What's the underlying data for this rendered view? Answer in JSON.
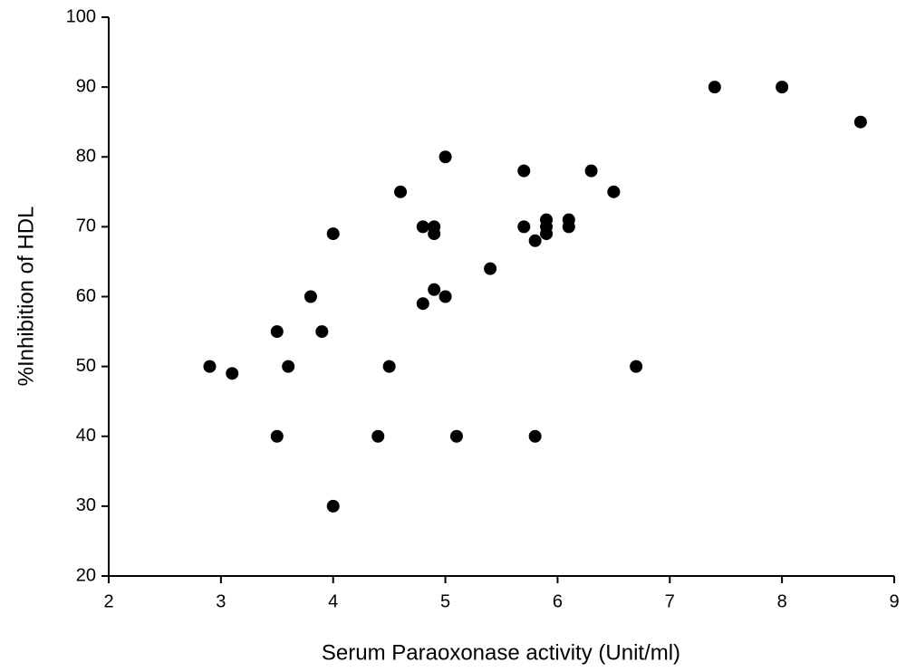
{
  "chart_data": {
    "type": "scatter",
    "x_label": "Serum Paraoxonase activity (Unit/ml)",
    "y_label": "%Inhibition of HDL",
    "x": [
      2.9,
      3.1,
      3.5,
      3.5,
      3.6,
      3.8,
      3.9,
      4.0,
      4.0,
      4.4,
      4.5,
      4.6,
      4.8,
      4.8,
      4.9,
      4.9,
      4.9,
      5.0,
      5.0,
      5.1,
      5.4,
      5.7,
      5.7,
      5.8,
      5.8,
      5.9,
      5.9,
      5.9,
      6.1,
      6.1,
      6.3,
      6.5,
      6.7,
      7.4,
      8.0,
      8.7
    ],
    "values": [
      50,
      49,
      55,
      40,
      50,
      60,
      55,
      69,
      30,
      40,
      50,
      75,
      70,
      59,
      70,
      69,
      61,
      80,
      60,
      40,
      64,
      78,
      70,
      68,
      40,
      71,
      70,
      69,
      71,
      70,
      78,
      75,
      50,
      90,
      90,
      85
    ],
    "color": "#000000",
    "xlim": [
      2,
      9
    ],
    "xticks": [
      2,
      3,
      4,
      5,
      6,
      7,
      8,
      9
    ],
    "ylim": [
      20,
      100
    ],
    "yticks": [
      20,
      30,
      40,
      50,
      60,
      70,
      80,
      90,
      100
    ]
  }
}
